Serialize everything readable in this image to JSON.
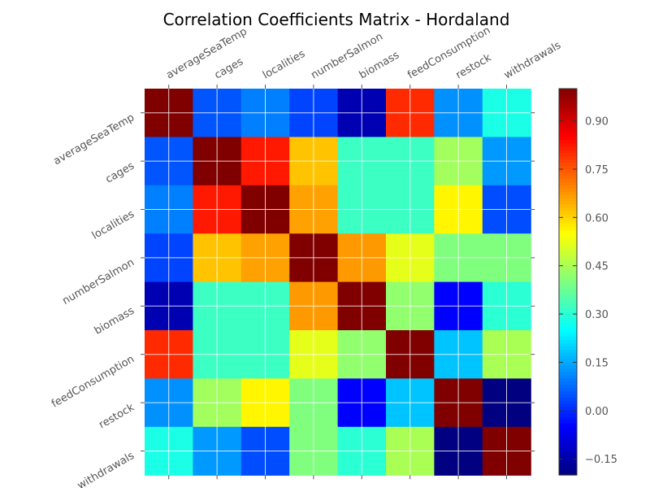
{
  "chart_data": {
    "type": "heatmap",
    "title": "Correlation Coefficients Matrix - Hordaland",
    "xlabel": "",
    "ylabel": "",
    "variables": [
      "averageSeaTemp",
      "cages",
      "localities",
      "numberSalmon",
      "biomass",
      "feedConsumption",
      "restock",
      "withdrawals"
    ],
    "matrix": [
      [
        1.0,
        0.05,
        0.1,
        0.03,
        -0.14,
        0.8,
        0.12,
        0.28
      ],
      [
        0.05,
        1.0,
        0.82,
        0.62,
        0.32,
        0.32,
        0.44,
        0.13
      ],
      [
        0.1,
        0.82,
        1.0,
        0.66,
        0.32,
        0.32,
        0.56,
        0.04
      ],
      [
        0.03,
        0.62,
        0.66,
        1.0,
        0.67,
        0.52,
        0.4,
        0.4
      ],
      [
        -0.14,
        0.32,
        0.32,
        0.67,
        1.0,
        0.42,
        -0.05,
        0.3
      ],
      [
        0.8,
        0.32,
        0.32,
        0.52,
        0.42,
        1.0,
        0.18,
        0.45
      ],
      [
        0.12,
        0.44,
        0.56,
        0.4,
        -0.05,
        0.18,
        1.0,
        -0.2
      ],
      [
        0.28,
        0.13,
        0.04,
        0.4,
        0.3,
        0.45,
        -0.2,
        1.0
      ]
    ],
    "colormap": "jet",
    "vmin": -0.2,
    "vmax": 1.0,
    "colorbar_ticks": [
      "0.90",
      "0.75",
      "0.60",
      "0.45",
      "0.30",
      "0.15",
      "0.00",
      "−0.15"
    ],
    "colorbar_tick_values": [
      0.9,
      0.75,
      0.6,
      0.45,
      0.3,
      0.15,
      0.0,
      -0.15
    ],
    "grid": true,
    "x_tick_position": "top",
    "x_tick_rotation_deg": 30,
    "y_tick_rotation_deg": 30
  }
}
